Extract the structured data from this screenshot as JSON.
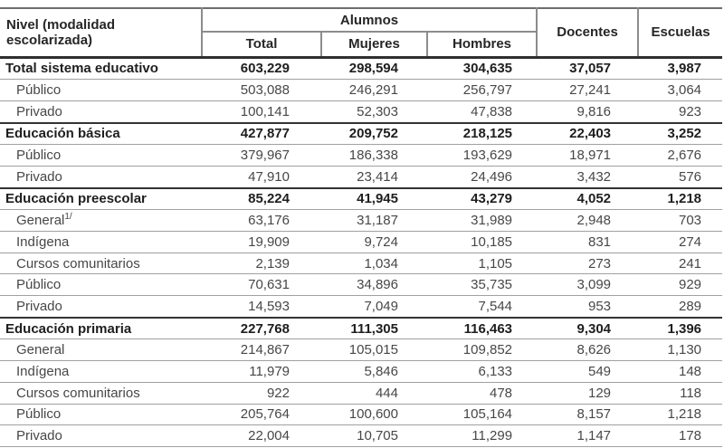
{
  "table": {
    "corner_header": "Nivel (modalidad escolarizada)",
    "group_header": "Alumnos",
    "sub_headers": [
      "Total",
      "Mujeres",
      "Hombres"
    ],
    "docentes_header": "Docentes",
    "escuelas_header": "Escuelas",
    "rows": [
      {
        "label": "Total sistema educativo",
        "bold": true,
        "values": [
          "603,229",
          "298,594",
          "304,635",
          "37,057",
          "3,987"
        ]
      },
      {
        "label": "Público",
        "bold": false,
        "values": [
          "503,088",
          "246,291",
          "256,797",
          "27,241",
          "3,064"
        ]
      },
      {
        "label": "Privado",
        "bold": false,
        "values": [
          "100,141",
          "52,303",
          "47,838",
          "9,816",
          "923"
        ]
      },
      {
        "label": "Educación básica",
        "bold": true,
        "values": [
          "427,877",
          "209,752",
          "218,125",
          "22,403",
          "3,252"
        ]
      },
      {
        "label": "Público",
        "bold": false,
        "values": [
          "379,967",
          "186,338",
          "193,629",
          "18,971",
          "2,676"
        ]
      },
      {
        "label": "Privado",
        "bold": false,
        "values": [
          "47,910",
          "23,414",
          "24,496",
          "3,432",
          "576"
        ]
      },
      {
        "label": "Educación preescolar",
        "bold": true,
        "values": [
          "85,224",
          "41,945",
          "43,279",
          "4,052",
          "1,218"
        ]
      },
      {
        "label": "General",
        "sup": "1/",
        "bold": false,
        "values": [
          "63,176",
          "31,187",
          "31,989",
          "2,948",
          "703"
        ]
      },
      {
        "label": "Indígena",
        "bold": false,
        "values": [
          "19,909",
          "9,724",
          "10,185",
          "831",
          "274"
        ]
      },
      {
        "label": "Cursos comunitarios",
        "bold": false,
        "values": [
          "2,139",
          "1,034",
          "1,105",
          "273",
          "241"
        ]
      },
      {
        "label": "Público",
        "bold": false,
        "values": [
          "70,631",
          "34,896",
          "35,735",
          "3,099",
          "929"
        ]
      },
      {
        "label": "Privado",
        "bold": false,
        "values": [
          "14,593",
          "7,049",
          "7,544",
          "953",
          "289"
        ]
      },
      {
        "label": "Educación primaria",
        "bold": true,
        "values": [
          "227,768",
          "111,305",
          "116,463",
          "9,304",
          "1,396"
        ]
      },
      {
        "label": "General",
        "bold": false,
        "values": [
          "214,867",
          "105,015",
          "109,852",
          "8,626",
          "1,130"
        ]
      },
      {
        "label": "Indígena",
        "bold": false,
        "values": [
          "11,979",
          "5,846",
          "6,133",
          "549",
          "148"
        ]
      },
      {
        "label": "Cursos comunitarios",
        "bold": false,
        "values": [
          "922",
          "444",
          "478",
          "129",
          "118"
        ]
      },
      {
        "label": "Público",
        "bold": false,
        "values": [
          "205,764",
          "100,600",
          "105,164",
          "8,157",
          "1,218"
        ]
      },
      {
        "label": "Privado",
        "bold": false,
        "values": [
          "22,004",
          "10,705",
          "11,299",
          "1,147",
          "178"
        ]
      }
    ],
    "colors": {
      "text_regular": "#474747",
      "text_bold": "#1e1e1e",
      "line_thin": "#a0a0a0",
      "line_dark": "#2f2f2f",
      "line_header_grid": "#8c8c8c"
    }
  }
}
